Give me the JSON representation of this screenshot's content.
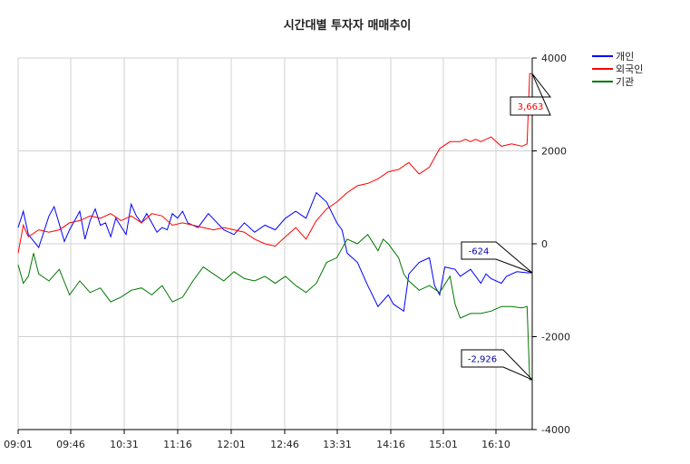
{
  "chart_data": {
    "type": "line",
    "title": "시간대별 투자자 매매추이",
    "xlabel": "",
    "ylabel": "",
    "x_ticks": [
      "09:01",
      "09:46",
      "10:31",
      "11:16",
      "12:01",
      "12:46",
      "13:31",
      "14:16",
      "15:01",
      "16:10"
    ],
    "y_ticks": [
      "4000",
      "2000",
      "0",
      "-2000",
      "-4000"
    ],
    "ylim": [
      -4000,
      4000
    ],
    "x_range": [
      0,
      100
    ],
    "grid": true,
    "legend_position": "top-right",
    "series": [
      {
        "name": "개인",
        "color": "#0000ff",
        "x": [
          0,
          1,
          2,
          4,
          6,
          7,
          9,
          10,
          12,
          13,
          14,
          15,
          16,
          17,
          18,
          19,
          21,
          22,
          23,
          24,
          25,
          27,
          28,
          29,
          30,
          31,
          32,
          33,
          35,
          36,
          37,
          40,
          42,
          44,
          46,
          48,
          50,
          52,
          54,
          56,
          58,
          60,
          62,
          63,
          64,
          66,
          68,
          70,
          72,
          73,
          75,
          76,
          78,
          80,
          81,
          82,
          83,
          85,
          86,
          88,
          90,
          91,
          92,
          94,
          95,
          97,
          99,
          100
        ],
        "y": [
          350,
          700,
          200,
          -80,
          600,
          800,
          50,
          300,
          700,
          100,
          500,
          750,
          400,
          450,
          150,
          550,
          200,
          850,
          600,
          450,
          650,
          250,
          350,
          300,
          650,
          550,
          700,
          450,
          350,
          500,
          650,
          300,
          200,
          450,
          250,
          400,
          300,
          550,
          700,
          550,
          1100,
          900,
          450,
          300,
          -200,
          -400,
          -900,
          -1350,
          -1100,
          -1300,
          -1450,
          -650,
          -400,
          -300,
          -900,
          -1100,
          -500,
          -550,
          -700,
          -550,
          -850,
          -650,
          -750,
          -850,
          -700,
          -600,
          -624,
          -624
        ]
      },
      {
        "name": "외국인",
        "color": "#ff0000",
        "x": [
          0,
          1,
          2,
          4,
          6,
          8,
          10,
          12,
          14,
          16,
          18,
          20,
          22,
          24,
          26,
          28,
          30,
          32,
          34,
          36,
          38,
          40,
          42,
          44,
          46,
          48,
          50,
          52,
          54,
          56,
          58,
          60,
          62,
          64,
          66,
          68,
          70,
          72,
          74,
          76,
          78,
          80,
          82,
          84,
          86,
          87,
          88,
          89,
          90,
          92,
          94,
          96,
          98,
          99,
          99.5,
          100
        ],
        "y": [
          -200,
          400,
          150,
          300,
          250,
          300,
          450,
          500,
          600,
          550,
          650,
          500,
          600,
          450,
          650,
          600,
          400,
          450,
          400,
          350,
          300,
          350,
          300,
          250,
          100,
          0,
          -50,
          150,
          350,
          100,
          500,
          750,
          900,
          1100,
          1250,
          1300,
          1400,
          1550,
          1600,
          1750,
          1500,
          1650,
          2050,
          2200,
          2200,
          2250,
          2200,
          2250,
          2200,
          2300,
          2100,
          2150,
          2100,
          2150,
          3663,
          3663
        ]
      },
      {
        "name": "기관",
        "color": "#007700",
        "x": [
          0,
          1,
          2,
          3,
          4,
          6,
          8,
          10,
          12,
          14,
          16,
          18,
          20,
          22,
          24,
          26,
          28,
          30,
          32,
          34,
          36,
          38,
          40,
          42,
          44,
          46,
          48,
          50,
          52,
          54,
          56,
          58,
          60,
          62,
          64,
          66,
          68,
          70,
          71,
          72,
          74,
          75,
          76,
          78,
          80,
          82,
          84,
          85,
          86,
          88,
          90,
          92,
          94,
          96,
          98,
          99,
          99.5,
          100
        ],
        "y": [
          -450,
          -850,
          -700,
          -200,
          -650,
          -800,
          -550,
          -1100,
          -800,
          -1050,
          -950,
          -1250,
          -1150,
          -1000,
          -950,
          -1100,
          -900,
          -1250,
          -1150,
          -800,
          -500,
          -650,
          -800,
          -600,
          -750,
          -800,
          -700,
          -850,
          -700,
          -900,
          -1050,
          -850,
          -400,
          -300,
          100,
          0,
          200,
          -150,
          100,
          0,
          -300,
          -650,
          -800,
          -1000,
          -900,
          -1050,
          -700,
          -1300,
          -1600,
          -1500,
          -1500,
          -1450,
          -1350,
          -1350,
          -1380,
          -1350,
          -2926,
          -2926
        ]
      }
    ],
    "callouts": [
      {
        "series_index": 1,
        "text": "3,663",
        "color": "#ff0000"
      },
      {
        "series_index": 0,
        "text": "-624",
        "color": "#0000aa"
      },
      {
        "series_index": 2,
        "text": "-2,926",
        "color": "#0000aa"
      }
    ]
  }
}
